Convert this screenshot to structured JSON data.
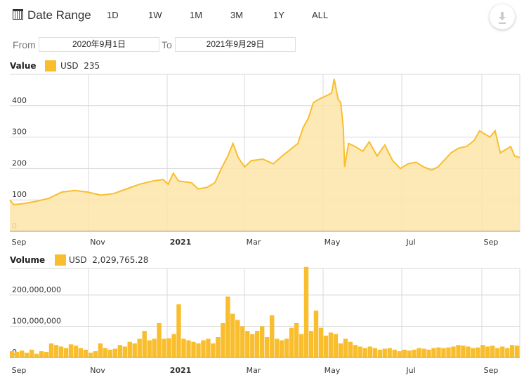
{
  "toolbar": {
    "title": "Date Range",
    "ranges": [
      "1D",
      "1W",
      "1M",
      "3M",
      "1Y",
      "ALL"
    ],
    "download_icon": "download-icon"
  },
  "date_range": {
    "from_label": "From",
    "from_value": "2020年9月1日",
    "to_label": "To",
    "to_value": "2021年9月29日"
  },
  "colors": {
    "accent": "#f9be2e",
    "fill": "#fde5a8",
    "grid": "#d8d8d8"
  },
  "chart_data": [
    {
      "type": "area",
      "title": "Value",
      "legend": "USD",
      "legend_value": "235",
      "x_ticks": [
        "Sep",
        "Nov",
        "2021",
        "Mar",
        "May",
        "Jul",
        "Sep"
      ],
      "y_ticks": [
        "0",
        "100",
        "200",
        "300",
        "400"
      ],
      "ylim": [
        0,
        500
      ],
      "days": 393,
      "points": [
        [
          0,
          100
        ],
        [
          3,
          85
        ],
        [
          10,
          88
        ],
        [
          20,
          95
        ],
        [
          30,
          105
        ],
        [
          40,
          125
        ],
        [
          50,
          130
        ],
        [
          60,
          125
        ],
        [
          70,
          115
        ],
        [
          80,
          120
        ],
        [
          90,
          135
        ],
        [
          100,
          150
        ],
        [
          110,
          160
        ],
        [
          118,
          165
        ],
        [
          122,
          150
        ],
        [
          126,
          185
        ],
        [
          130,
          160
        ],
        [
          140,
          155
        ],
        [
          145,
          135
        ],
        [
          152,
          140
        ],
        [
          158,
          155
        ],
        [
          163,
          200
        ],
        [
          168,
          240
        ],
        [
          172,
          280
        ],
        [
          176,
          235
        ],
        [
          181,
          205
        ],
        [
          186,
          225
        ],
        [
          195,
          230
        ],
        [
          203,
          215
        ],
        [
          210,
          240
        ],
        [
          216,
          260
        ],
        [
          222,
          280
        ],
        [
          226,
          330
        ],
        [
          230,
          360
        ],
        [
          234,
          410
        ],
        [
          238,
          420
        ],
        [
          243,
          430
        ],
        [
          248,
          440
        ],
        [
          250,
          485
        ],
        [
          253,
          420
        ],
        [
          255,
          410
        ],
        [
          257,
          330
        ],
        [
          258,
          205
        ],
        [
          261,
          280
        ],
        [
          266,
          270
        ],
        [
          272,
          255
        ],
        [
          277,
          285
        ],
        [
          283,
          240
        ],
        [
          289,
          275
        ],
        [
          295,
          225
        ],
        [
          301,
          200
        ],
        [
          307,
          215
        ],
        [
          313,
          220
        ],
        [
          319,
          205
        ],
        [
          325,
          195
        ],
        [
          330,
          205
        ],
        [
          340,
          250
        ],
        [
          346,
          265
        ],
        [
          352,
          270
        ],
        [
          358,
          290
        ],
        [
          362,
          320
        ],
        [
          366,
          310
        ],
        [
          370,
          300
        ],
        [
          374,
          320
        ],
        [
          378,
          250
        ],
        [
          382,
          260
        ],
        [
          386,
          270
        ],
        [
          389,
          240
        ],
        [
          393,
          235
        ]
      ]
    },
    {
      "type": "bar",
      "title": "Volume",
      "legend": "USD",
      "legend_value": "2,029,765.28",
      "x_ticks": [
        "Sep",
        "Nov",
        "2021",
        "Mar",
        "May",
        "Jul",
        "Sep"
      ],
      "y_ticks": [
        "0",
        "100,000,000",
        "200,000,000"
      ],
      "ylim": [
        0,
        285
      ],
      "unit": "millions",
      "values": [
        20,
        18,
        22,
        15,
        25,
        12,
        20,
        18,
        45,
        40,
        35,
        30,
        42,
        38,
        30,
        25,
        15,
        20,
        45,
        30,
        25,
        28,
        40,
        35,
        50,
        45,
        60,
        85,
        55,
        60,
        110,
        60,
        62,
        75,
        170,
        60,
        55,
        50,
        45,
        55,
        60,
        45,
        65,
        110,
        195,
        140,
        120,
        100,
        85,
        75,
        85,
        100,
        65,
        135,
        60,
        55,
        60,
        95,
        110,
        75,
        290,
        85,
        150,
        95,
        70,
        80,
        75,
        45,
        60,
        50,
        40,
        35,
        30,
        35,
        30,
        25,
        28,
        30,
        25,
        20,
        25,
        22,
        25,
        30,
        28,
        25,
        30,
        32,
        30,
        32,
        35,
        40,
        38,
        35,
        30,
        32,
        40,
        35,
        38,
        30,
        35,
        30,
        40,
        38
      ]
    }
  ]
}
